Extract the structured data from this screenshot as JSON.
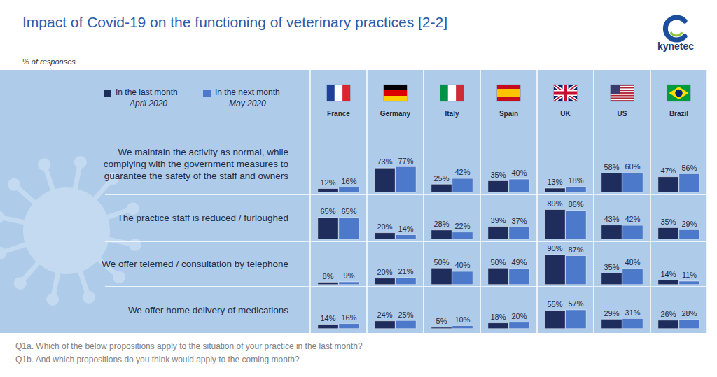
{
  "title": "Impact of Covid-19 on the functioning of veterinary practices [2-2]",
  "subtitle": "% of responses",
  "logo": "kynetec",
  "notes": [
    "Q1a. Which of the below propositions apply to the situation of your practice in the last month?",
    "Q1b. And which propositions do you think would apply to the coming month?"
  ],
  "chart_data": [
    {
      "type": "bar",
      "title": "We maintain the activity as normal, while complying with the government measures to guarantee the safety of the staff and owners",
      "categories": [
        "France",
        "Germany",
        "Italy",
        "Spain",
        "UK",
        "US",
        "Brazil"
      ],
      "series": [
        {
          "name": "In the last month",
          "period": "April 2020",
          "color": "#1f2d5c",
          "values": [
            12,
            73,
            25,
            35,
            13,
            58,
            47
          ],
          "value_labels": [
            "12%",
            "73%",
            "25%",
            "35%",
            "13%",
            "58%",
            "47%"
          ]
        },
        {
          "name": "In the next month",
          "period": "May 2020",
          "color": "#4c79c9",
          "values": [
            16,
            77,
            42,
            40,
            18,
            60,
            56
          ],
          "value_labels": [
            "16%",
            "77%",
            "42%",
            "40%",
            "18%",
            "60%",
            "56%"
          ]
        }
      ],
      "ylim": [
        0,
        100
      ],
      "yticks": [
        0,
        100
      ],
      "grid": false,
      "data_labels": true,
      "tick_labels": "x",
      "legend": "upper left"
    },
    {
      "type": "bar",
      "title": "The practice staff is reduced / furloughed",
      "categories": [
        "France",
        "Germany",
        "Italy",
        "Spain",
        "UK",
        "US",
        "Brazil"
      ],
      "series": [
        {
          "name": "In the last month",
          "period": "April 2020",
          "color": "#1f2d5c",
          "values": [
            65,
            20,
            28,
            39,
            89,
            43,
            35
          ],
          "value_labels": [
            "65%",
            "20%",
            "28%",
            "39%",
            "89%",
            "43%",
            "35%"
          ]
        },
        {
          "name": "In the next month",
          "period": "May 2020",
          "color": "#4c79c9",
          "values": [
            65,
            14,
            22,
            37,
            86,
            42,
            29
          ],
          "value_labels": [
            "65%",
            "14%",
            "22%",
            "37%",
            "86%",
            "42%",
            "29%"
          ]
        }
      ],
      "ylim": [
        0,
        100
      ],
      "yticks": [
        0,
        100
      ],
      "grid": false,
      "data_labels": true,
      "tick_labels": false
    },
    {
      "type": "bar",
      "title": "We offer telemed / consultation by telephone",
      "categories": [
        "France",
        "Germany",
        "Italy",
        "Spain",
        "UK",
        "US",
        "Brazil"
      ],
      "series": [
        {
          "name": "In the last month",
          "period": "April 2020",
          "color": "#1f2d5c",
          "values": [
            8,
            20,
            50,
            50,
            90,
            35,
            14
          ],
          "value_labels": [
            "8%",
            "20%",
            "50%",
            "50%",
            "90%",
            "35%",
            "14%"
          ]
        },
        {
          "name": "In the next month",
          "period": "May 2020",
          "color": "#4c79c9",
          "values": [
            9,
            21,
            40,
            49,
            87,
            48,
            11
          ],
          "value_labels": [
            "9%",
            "21%",
            "40%",
            "49%",
            "87%",
            "48%",
            "11%"
          ]
        }
      ],
      "ylim": [
        0,
        100
      ],
      "yticks": [
        0,
        100
      ],
      "grid": false,
      "data_labels": true,
      "tick_labels": false
    },
    {
      "type": "bar",
      "title": "We offer home delivery of medications",
      "categories": [
        "France",
        "Germany",
        "Italy",
        "Spain",
        "UK",
        "US",
        "Brazil"
      ],
      "series": [
        {
          "name": "In the last month",
          "period": "April 2020",
          "color": "#1f2d5c",
          "values": [
            14,
            24,
            5,
            18,
            55,
            29,
            26
          ],
          "value_labels": [
            "14%",
            "24%",
            "5%",
            "18%",
            "55%",
            "29%",
            "26%"
          ]
        },
        {
          "name": "In the next month",
          "period": "May 2020",
          "color": "#4c79c9",
          "values": [
            16,
            25,
            10,
            20,
            57,
            31,
            28
          ],
          "value_labels": [
            "16%",
            "25%",
            "10%",
            "20%",
            "57%",
            "31%",
            "28%"
          ]
        }
      ],
      "ylim": [
        0,
        100
      ],
      "yticks": [
        0,
        100
      ],
      "grid": false,
      "data_labels": true,
      "tick_labels": false
    }
  ]
}
